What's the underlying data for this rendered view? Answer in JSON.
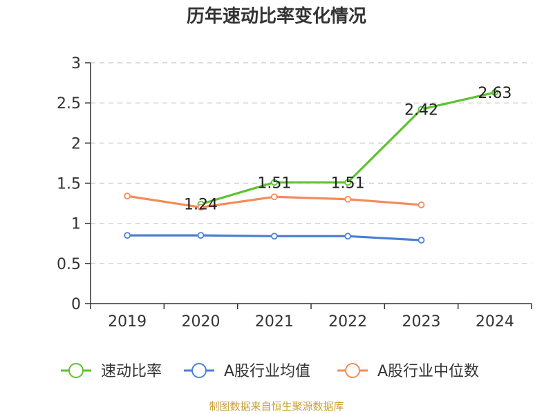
{
  "chart_data": {
    "type": "line",
    "title": "历年速动比率变化情况",
    "categories": [
      "2019",
      "2020",
      "2021",
      "2022",
      "2023",
      "2024"
    ],
    "ylim": [
      0,
      3
    ],
    "yticks": [
      "0",
      "0.5",
      "1",
      "1.5",
      "2",
      "2.5",
      "3"
    ],
    "grid": true,
    "legend_position": "bottom",
    "series": [
      {
        "name": "速动比率",
        "color": "#5cc22f",
        "values": [
          null,
          1.24,
          1.51,
          1.51,
          2.42,
          2.63
        ],
        "labels": [
          null,
          "1.24",
          "1.51",
          "1.51",
          "2.42",
          "2.63"
        ]
      },
      {
        "name": "A股行业均值",
        "color": "#4a7fd6",
        "values": [
          0.85,
          0.85,
          0.84,
          0.84,
          0.79,
          null
        ]
      },
      {
        "name": "A股行业中位数",
        "color": "#f48b5a",
        "values": [
          1.34,
          1.2,
          1.33,
          1.3,
          1.23,
          null
        ]
      }
    ]
  },
  "source": "制图数据来自恒生聚源数据库"
}
